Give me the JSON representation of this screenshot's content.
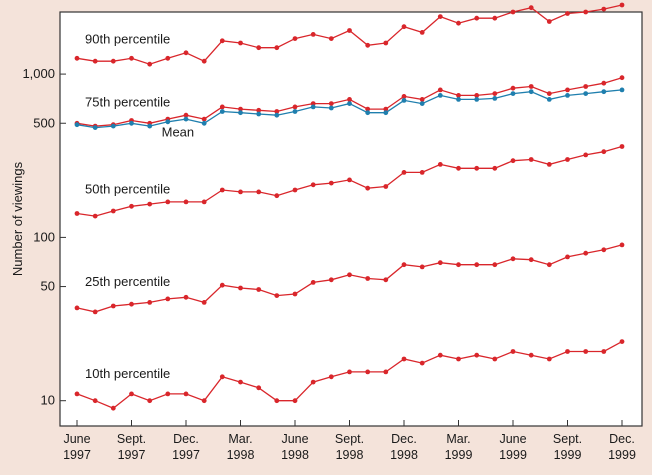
{
  "chart_data": {
    "type": "line",
    "y_scale": "log",
    "ylim": [
      7,
      2400
    ],
    "ylabel": "Number of viewings",
    "yticks": [
      {
        "value": 10,
        "label": "10"
      },
      {
        "value": 50,
        "label": "50"
      },
      {
        "value": 100,
        "label": "100"
      },
      {
        "value": 500,
        "label": "500"
      },
      {
        "value": 1000,
        "label": "1,000"
      }
    ],
    "xticks": [
      {
        "index": 0,
        "line1": "June",
        "line2": "1997"
      },
      {
        "index": 3,
        "line1": "Sept.",
        "line2": "1997"
      },
      {
        "index": 6,
        "line1": "Dec.",
        "line2": "1997"
      },
      {
        "index": 9,
        "line1": "Mar.",
        "line2": "1998"
      },
      {
        "index": 12,
        "line1": "June",
        "line2": "1998"
      },
      {
        "index": 15,
        "line1": "Sept.",
        "line2": "1998"
      },
      {
        "index": 18,
        "line1": "Dec.",
        "line2": "1998"
      },
      {
        "index": 21,
        "line1": "Mar.",
        "line2": "1999"
      },
      {
        "index": 24,
        "line1": "June",
        "line2": "1999"
      },
      {
        "index": 27,
        "line1": "Sept.",
        "line2": "1999"
      },
      {
        "index": 30,
        "line1": "Dec.",
        "line2": "1999"
      }
    ],
    "n_points": 31,
    "series": [
      {
        "name": "90th percentile",
        "color": "#d9262b",
        "values": [
          1250,
          1200,
          1200,
          1250,
          1150,
          1250,
          1350,
          1200,
          1600,
          1550,
          1450,
          1450,
          1650,
          1750,
          1650,
          1850,
          1500,
          1550,
          1950,
          1800,
          2250,
          2050,
          2200,
          2200,
          2400,
          2550,
          2100,
          2350,
          2400,
          2500,
          2650
        ]
      },
      {
        "name": "75th percentile",
        "color": "#d9262b",
        "values": [
          500,
          480,
          490,
          520,
          500,
          530,
          560,
          530,
          630,
          610,
          600,
          590,
          630,
          660,
          660,
          700,
          610,
          610,
          730,
          700,
          800,
          740,
          740,
          760,
          820,
          840,
          760,
          800,
          840,
          880,
          950
        ]
      },
      {
        "name": "Mean",
        "color": "#1f7fae",
        "values": [
          490,
          470,
          480,
          500,
          480,
          510,
          530,
          500,
          590,
          580,
          570,
          560,
          590,
          630,
          620,
          660,
          580,
          580,
          690,
          660,
          740,
          700,
          700,
          710,
          760,
          780,
          700,
          740,
          760,
          780,
          800
        ]
      },
      {
        "name": "50th percentile",
        "color": "#d9262b",
        "values": [
          140,
          135,
          145,
          155,
          160,
          165,
          165,
          165,
          195,
          190,
          190,
          180,
          195,
          210,
          215,
          225,
          200,
          205,
          250,
          250,
          280,
          265,
          265,
          265,
          295,
          300,
          280,
          300,
          320,
          335,
          360
        ]
      },
      {
        "name": "25th percentile",
        "color": "#d9262b",
        "values": [
          37,
          35,
          38,
          39,
          40,
          42,
          43,
          40,
          51,
          49,
          48,
          44,
          45,
          53,
          55,
          59,
          56,
          55,
          68,
          66,
          70,
          68,
          68,
          68,
          74,
          73,
          68,
          76,
          80,
          84,
          90
        ]
      },
      {
        "name": "10th percentile",
        "color": "#d9262b",
        "values": [
          11,
          10,
          9,
          11,
          10,
          11,
          11,
          10,
          14,
          13,
          12,
          10,
          10,
          13,
          14,
          15,
          15,
          15,
          18,
          17,
          19,
          18,
          19,
          18,
          20,
          19,
          18,
          20,
          20,
          20,
          23
        ]
      }
    ]
  }
}
